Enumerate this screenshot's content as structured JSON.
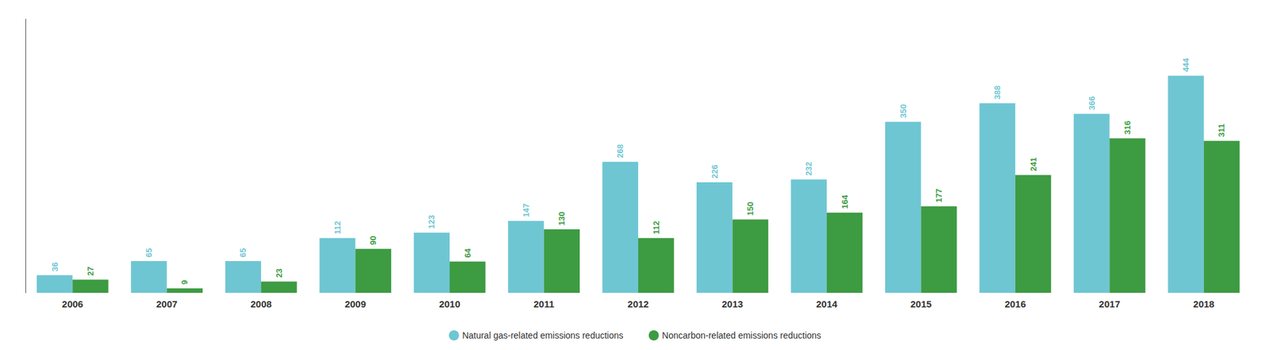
{
  "chart_data": {
    "type": "bar",
    "categories": [
      "2006",
      "2007",
      "2008",
      "2009",
      "2010",
      "2011",
      "2012",
      "2013",
      "2014",
      "2015",
      "2016",
      "2017",
      "2018"
    ],
    "series": [
      {
        "name": "Natural gas-related emissions reductions",
        "color": "#6EC6D3",
        "values": [
          36,
          65,
          65,
          112,
          123,
          147,
          268,
          226,
          232,
          350,
          388,
          366,
          444
        ]
      },
      {
        "name": "Noncarbon-related emissions reductions",
        "color": "#3D9B42",
        "values": [
          27,
          9,
          23,
          90,
          64,
          130,
          112,
          150,
          164,
          177,
          241,
          316,
          311
        ]
      }
    ],
    "ylim": [
      0,
      560
    ],
    "tick_labels": "x",
    "data_labels": true,
    "legend": "bottom",
    "grid": false
  }
}
